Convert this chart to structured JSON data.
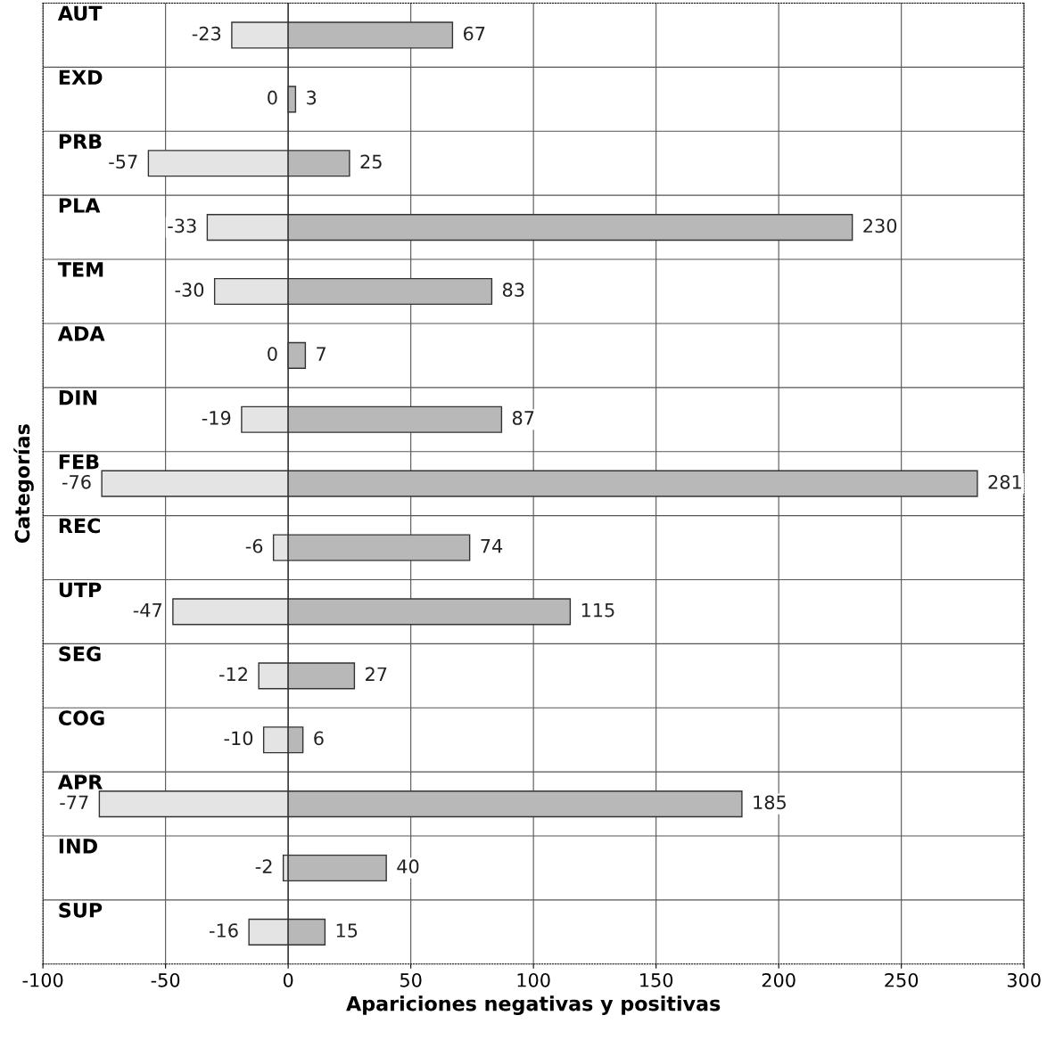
{
  "chart_data": {
    "type": "bar",
    "orientation": "horizontal",
    "stacked": true,
    "xlabel": "Apariciones negativas y positivas",
    "ylabel": "Categorías",
    "categories": [
      "AUT",
      "EXD",
      "PRB",
      "PLA",
      "TEM",
      "ADA",
      "DIN",
      "FEB",
      "REC",
      "UTP",
      "SEG",
      "COG",
      "APR",
      "IND",
      "SUP"
    ],
    "series": [
      {
        "color": "#e4e4e4",
        "values": [
          -23,
          0,
          -57,
          -33,
          -30,
          0,
          -19,
          -76,
          -6,
          -47,
          -12,
          -10,
          -77,
          -2,
          -16
        ]
      },
      {
        "color": "#b8b8b8",
        "values": [
          67,
          3,
          25,
          230,
          83,
          7,
          87,
          281,
          74,
          115,
          27,
          6,
          185,
          40,
          15
        ]
      }
    ],
    "xlim": [
      -100,
      300
    ],
    "xticks": [
      -100,
      -50,
      0,
      50,
      100,
      150,
      200,
      250,
      300
    ],
    "grid": true,
    "data_labels": true
  }
}
